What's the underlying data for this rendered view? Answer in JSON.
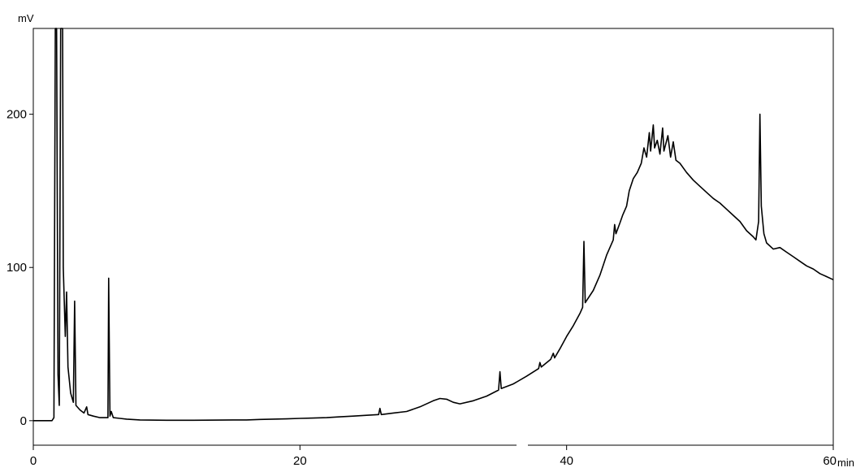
{
  "chart_data": {
    "type": "line",
    "title": "",
    "xlabel": "min",
    "ylabel": "mV",
    "xlim": [
      0,
      60
    ],
    "ylim": [
      -16,
      256
    ],
    "x_ticks": [
      {
        "value": 0,
        "label": "0"
      },
      {
        "value": 20,
        "label": "20"
      },
      {
        "value": 40,
        "label": "40"
      },
      {
        "value": 60,
        "label": "60"
      }
    ],
    "y_ticks": [
      {
        "value": 0,
        "label": "0"
      },
      {
        "value": 100,
        "label": "100"
      },
      {
        "value": 200,
        "label": "200"
      }
    ],
    "grid": false,
    "line_color": "#000000",
    "series": [
      {
        "name": "",
        "points": [
          [
            0,
            0
          ],
          [
            1.4,
            0
          ],
          [
            1.55,
            2
          ],
          [
            1.65,
            256
          ],
          [
            1.75,
            256
          ],
          [
            1.85,
            30
          ],
          [
            1.95,
            10
          ],
          [
            2.05,
            256
          ],
          [
            2.2,
            256
          ],
          [
            2.25,
            100
          ],
          [
            2.4,
            55
          ],
          [
            2.5,
            84
          ],
          [
            2.6,
            35
          ],
          [
            2.8,
            18
          ],
          [
            3.0,
            12
          ],
          [
            3.1,
            78
          ],
          [
            3.2,
            10
          ],
          [
            3.5,
            7
          ],
          [
            3.8,
            5
          ],
          [
            4.0,
            9
          ],
          [
            4.1,
            4
          ],
          [
            4.5,
            3
          ],
          [
            5.0,
            2
          ],
          [
            5.6,
            2
          ],
          [
            5.65,
            93
          ],
          [
            5.75,
            3
          ],
          [
            5.85,
            6
          ],
          [
            6.0,
            2
          ],
          [
            6.5,
            1.5
          ],
          [
            7,
            1
          ],
          [
            8,
            0.5
          ],
          [
            10,
            0.3
          ],
          [
            12,
            0.3
          ],
          [
            14,
            0.4
          ],
          [
            15,
            0.5
          ],
          [
            16,
            0.5
          ],
          [
            17,
            0.8
          ],
          [
            18,
            1
          ],
          [
            19,
            1.2
          ],
          [
            20,
            1.5
          ],
          [
            21,
            1.7
          ],
          [
            22,
            2
          ],
          [
            23,
            2.5
          ],
          [
            24,
            3
          ],
          [
            25,
            3.5
          ],
          [
            25.9,
            4
          ],
          [
            26,
            8
          ],
          [
            26.1,
            4
          ],
          [
            27,
            5
          ],
          [
            28,
            6
          ],
          [
            29,
            9
          ],
          [
            30,
            13
          ],
          [
            30.5,
            14.5
          ],
          [
            31,
            14
          ],
          [
            31.5,
            12
          ],
          [
            32,
            11
          ],
          [
            33,
            13
          ],
          [
            34,
            16
          ],
          [
            34.9,
            20
          ],
          [
            35,
            32
          ],
          [
            35.1,
            21
          ],
          [
            36,
            24
          ],
          [
            37,
            29
          ],
          [
            37.9,
            34
          ],
          [
            38,
            38
          ],
          [
            38.1,
            35
          ],
          [
            38.8,
            40
          ],
          [
            39,
            44
          ],
          [
            39.1,
            41
          ],
          [
            39.5,
            47
          ],
          [
            40,
            55
          ],
          [
            40.5,
            62
          ],
          [
            41,
            70
          ],
          [
            41.2,
            74
          ],
          [
            41.3,
            117
          ],
          [
            41.4,
            77
          ],
          [
            42,
            85
          ],
          [
            42.5,
            95
          ],
          [
            43,
            108
          ],
          [
            43.5,
            118
          ],
          [
            43.6,
            128
          ],
          [
            43.7,
            122
          ],
          [
            44,
            129
          ],
          [
            44.2,
            134
          ],
          [
            44.5,
            140
          ],
          [
            44.7,
            150
          ],
          [
            45,
            158
          ],
          [
            45.3,
            162
          ],
          [
            45.6,
            168
          ],
          [
            45.8,
            178
          ],
          [
            46.0,
            172
          ],
          [
            46.2,
            188
          ],
          [
            46.3,
            176
          ],
          [
            46.5,
            193
          ],
          [
            46.6,
            178
          ],
          [
            46.8,
            183
          ],
          [
            47,
            174
          ],
          [
            47.2,
            191
          ],
          [
            47.3,
            176
          ],
          [
            47.6,
            186
          ],
          [
            47.8,
            172
          ],
          [
            48,
            182
          ],
          [
            48.2,
            170
          ],
          [
            48.5,
            168
          ],
          [
            49,
            162
          ],
          [
            49.5,
            157
          ],
          [
            50,
            153
          ],
          [
            50.5,
            149
          ],
          [
            51,
            145
          ],
          [
            51.5,
            142
          ],
          [
            52,
            138
          ],
          [
            52.5,
            134
          ],
          [
            53,
            130
          ],
          [
            53.5,
            124
          ],
          [
            54,
            120
          ],
          [
            54.2,
            118
          ],
          [
            54.4,
            130
          ],
          [
            54.5,
            200
          ],
          [
            54.6,
            140
          ],
          [
            54.8,
            122
          ],
          [
            55,
            116
          ],
          [
            55.5,
            112
          ],
          [
            56,
            113
          ],
          [
            56.5,
            110
          ],
          [
            57,
            107
          ],
          [
            57.5,
            104
          ],
          [
            58,
            101
          ],
          [
            58.5,
            99
          ],
          [
            59,
            96
          ],
          [
            59.5,
            94
          ],
          [
            60,
            92
          ]
        ]
      }
    ]
  }
}
